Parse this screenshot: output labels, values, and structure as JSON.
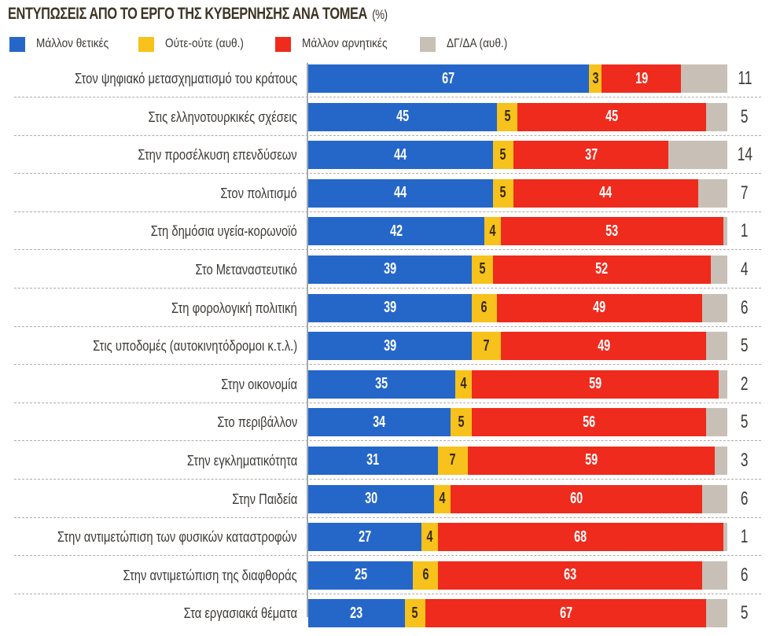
{
  "chart_data": {
    "type": "bar",
    "orientation": "horizontal",
    "stacked": true,
    "title": "ΕΝΤΥΠΩΣΕΙΣ ΑΠΟ ΤΟ ΕΡΓΟ ΤΗΣ ΚΥΒΕΡΝΗΣΗΣ ΑΝΑ ΤΟΜΕΑ",
    "unit": "(%)",
    "xlabel": "",
    "ylabel": "",
    "xlim": [
      0,
      100
    ],
    "grid": false,
    "legend_position": "top-left",
    "categories": [
      "Στον ψηφιακό μετασχηματισμό του κράτους",
      "Στις ελληνοτουρκικές σχέσεις",
      "Στην προσέλκυση επενδύσεων",
      "Στον πολιτισμό",
      "Στη δημόσια υγεία-κορωνοϊό",
      "Στο Μεταναστευτικό",
      "Στη φορολογική πολιτική",
      "Στις υποδομές (αυτοκινητόδρομοι κ.τ.λ.)",
      "Στην οικονομία",
      "Στο περιβάλλον",
      "Στην εγκληματικότητα",
      "Στην Παιδεία",
      "Στην αντιμετώπιση των φυσικών καταστροφών",
      "Στην αντιμετώπιση της διαφθοράς",
      "Στα εργασιακά θέματα"
    ],
    "series": [
      {
        "name": "Μάλλον θετικές",
        "color": "#2567c9",
        "values": [
          67,
          45,
          44,
          44,
          42,
          39,
          39,
          39,
          35,
          34,
          31,
          30,
          27,
          25,
          23
        ]
      },
      {
        "name": "Ούτε-ούτε (αυθ.)",
        "color": "#f6c21b",
        "values": [
          3,
          5,
          5,
          5,
          4,
          5,
          6,
          7,
          4,
          5,
          7,
          4,
          4,
          6,
          5
        ]
      },
      {
        "name": "Μάλλον αρνητικές",
        "color": "#ee2b1d",
        "values": [
          19,
          45,
          37,
          44,
          53,
          52,
          49,
          49,
          59,
          56,
          59,
          60,
          68,
          63,
          67
        ]
      },
      {
        "name": "ΔΓ/ΔΑ (αυθ.)",
        "color": "#c8c0b6",
        "values": [
          11,
          5,
          14,
          7,
          1,
          4,
          6,
          5,
          2,
          5,
          3,
          6,
          1,
          6,
          5
        ]
      }
    ]
  }
}
